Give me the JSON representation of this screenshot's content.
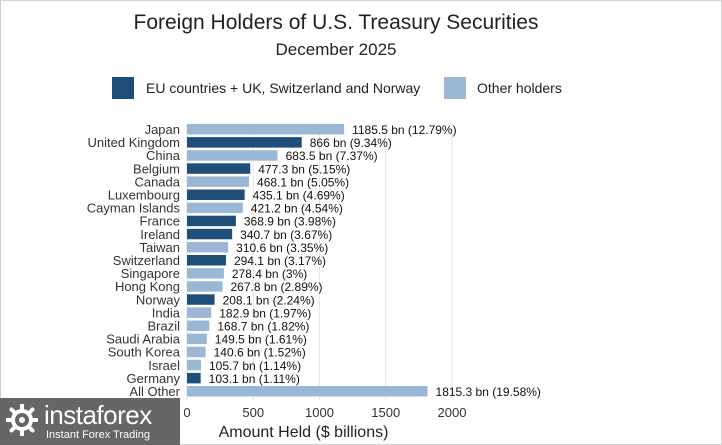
{
  "chart_data": {
    "type": "bar",
    "orientation": "horizontal",
    "title": "Foreign Holders of U.S. Treasury Securities",
    "subtitle": "December 2025",
    "xlabel": "Amount Held ($ billions)",
    "ylabel": "",
    "xlim": [
      0,
      2000
    ],
    "xticks": [
      0,
      500,
      1000,
      1500,
      2000
    ],
    "grid": true,
    "legend_position": "top",
    "legend": [
      {
        "key": "eu",
        "label": "EU countries + UK, Switzerland and Norway",
        "color": "#1f4e79"
      },
      {
        "key": "other",
        "label": "Other holders",
        "color": "#9ab8d6"
      }
    ],
    "bars": [
      {
        "category": "Japan",
        "value": 1185.5,
        "group": "other",
        "label": "1185.5 bn (12.79%)"
      },
      {
        "category": "United Kingdom",
        "value": 866,
        "group": "eu",
        "label": "866 bn (9.34%)"
      },
      {
        "category": "China",
        "value": 683.5,
        "group": "other",
        "label": "683.5 bn (7.37%)"
      },
      {
        "category": "Belgium",
        "value": 477.3,
        "group": "eu",
        "label": "477.3 bn (5.15%)"
      },
      {
        "category": "Canada",
        "value": 468.1,
        "group": "other",
        "label": "468.1 bn (5.05%)"
      },
      {
        "category": "Luxembourg",
        "value": 435.1,
        "group": "eu",
        "label": "435.1 bn (4.69%)"
      },
      {
        "category": "Cayman Islands",
        "value": 421.2,
        "group": "other",
        "label": "421.2 bn (4.54%)"
      },
      {
        "category": "France",
        "value": 368.9,
        "group": "eu",
        "label": "368.9 bn (3.98%)"
      },
      {
        "category": "Ireland",
        "value": 340.7,
        "group": "eu",
        "label": "340.7 bn (3.67%)"
      },
      {
        "category": "Taiwan",
        "value": 310.6,
        "group": "other",
        "label": "310.6 bn (3.35%)"
      },
      {
        "category": "Switzerland",
        "value": 294.1,
        "group": "eu",
        "label": "294.1 bn (3.17%)"
      },
      {
        "category": "Singapore",
        "value": 278.4,
        "group": "other",
        "label": "278.4 bn (3%)"
      },
      {
        "category": "Hong Kong",
        "value": 267.8,
        "group": "other",
        "label": "267.8 bn (2.89%)"
      },
      {
        "category": "Norway",
        "value": 208.1,
        "group": "eu",
        "label": "208.1 bn (2.24%)"
      },
      {
        "category": "India",
        "value": 182.9,
        "group": "other",
        "label": "182.9 bn (1.97%)"
      },
      {
        "category": "Brazil",
        "value": 168.7,
        "group": "other",
        "label": "168.7 bn (1.82%)"
      },
      {
        "category": "Saudi Arabia",
        "value": 149.5,
        "group": "other",
        "label": "149.5 bn (1.61%)"
      },
      {
        "category": "South Korea",
        "value": 140.6,
        "group": "other",
        "label": "140.6 bn (1.52%)"
      },
      {
        "category": "Israel",
        "value": 105.7,
        "group": "other",
        "label": "105.7 bn (1.14%)"
      },
      {
        "category": "Germany",
        "value": 103.1,
        "group": "eu",
        "label": "103.1 bn (1.11%)"
      },
      {
        "category": "All Other",
        "value": 1815.3,
        "group": "other",
        "label": "1815.3 bn (19.58%)"
      }
    ]
  },
  "watermark": {
    "brand": "instaforex",
    "tagline": "Instant Forex Trading"
  }
}
